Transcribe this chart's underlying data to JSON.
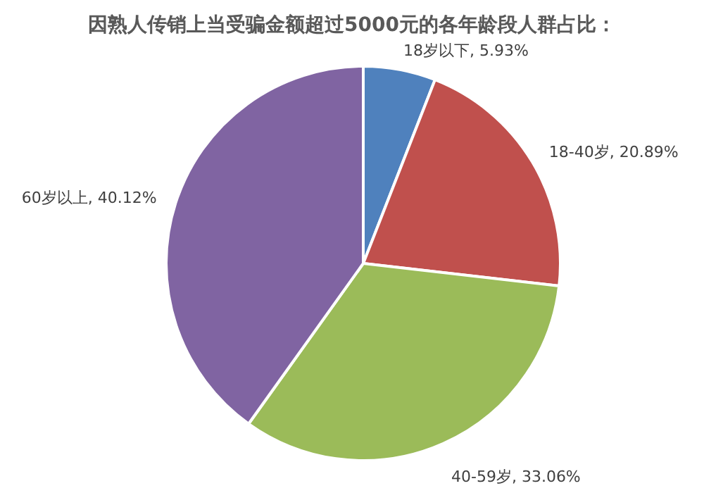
{
  "chart_data": {
    "type": "pie",
    "title": "因熟人传销上当受骗金额超过5000元的各年龄段人群占比：",
    "categories": [
      "18岁以下",
      "18-40岁",
      "40-59岁",
      "60岁以上"
    ],
    "values": [
      5.93,
      20.89,
      33.06,
      40.12
    ],
    "colors": [
      "#4f81bd",
      "#c0504d",
      "#9bbb59",
      "#8064a2"
    ],
    "value_labels": [
      ", 5.93%",
      ", 20.89%",
      ", 33.06%",
      ", 40.12%"
    ]
  }
}
